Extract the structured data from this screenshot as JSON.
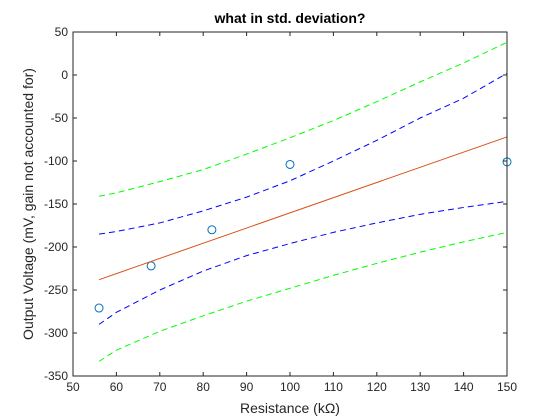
{
  "chart_data": {
    "type": "scatter",
    "title": "what in std. deviation?",
    "xlabel": "Resistance (kΩ)",
    "ylabel": "Output Voltage (mV, gain not accounted for)",
    "xlim": [
      50,
      150
    ],
    "ylim": [
      -350,
      50
    ],
    "xticks": [
      50,
      60,
      70,
      80,
      90,
      100,
      110,
      120,
      130,
      140,
      150
    ],
    "yticks": [
      -350,
      -300,
      -250,
      -200,
      -150,
      -100,
      -50,
      0,
      50
    ],
    "grid": false,
    "legend": "none",
    "series": [
      {
        "kind": "points",
        "marker": "circle",
        "color": "#0072BD",
        "x": [
          56,
          68,
          82,
          100,
          150
        ],
        "y": [
          -271,
          -222,
          -180,
          -104,
          -101
        ]
      },
      {
        "kind": "fit",
        "style": "solid",
        "color": "#D95319",
        "x": [
          56,
          150
        ],
        "y": [
          -238,
          -72
        ]
      },
      {
        "kind": "band",
        "style": "dashed",
        "color": "#0000FF",
        "x": [
          56,
          60,
          70,
          80,
          90,
          100,
          110,
          120,
          130,
          140,
          150
        ],
        "y": [
          -185,
          -182,
          -172,
          -158,
          -142,
          -123,
          -100,
          -76,
          -50,
          -27,
          2
        ]
      },
      {
        "kind": "band",
        "style": "dashed",
        "color": "#0000FF",
        "x": [
          56,
          60,
          70,
          80,
          90,
          100,
          110,
          120,
          130,
          140,
          150
        ],
        "y": [
          -290,
          -276,
          -250,
          -228,
          -210,
          -196,
          -183,
          -172,
          -162,
          -154,
          -147
        ]
      },
      {
        "kind": "band",
        "style": "dashed",
        "color": "#00FF00",
        "x": [
          56,
          60,
          70,
          80,
          90,
          100,
          110,
          120,
          130,
          140,
          150
        ],
        "y": [
          -141,
          -137,
          -124,
          -110,
          -92,
          -73,
          -53,
          -31,
          -8,
          14,
          38
        ]
      },
      {
        "kind": "band",
        "style": "dashed",
        "color": "#00FF00",
        "x": [
          56,
          60,
          70,
          80,
          90,
          100,
          110,
          120,
          130,
          140,
          150
        ],
        "y": [
          -333,
          -320,
          -298,
          -280,
          -263,
          -248,
          -233,
          -219,
          -206,
          -194,
          -183
        ]
      }
    ]
  }
}
